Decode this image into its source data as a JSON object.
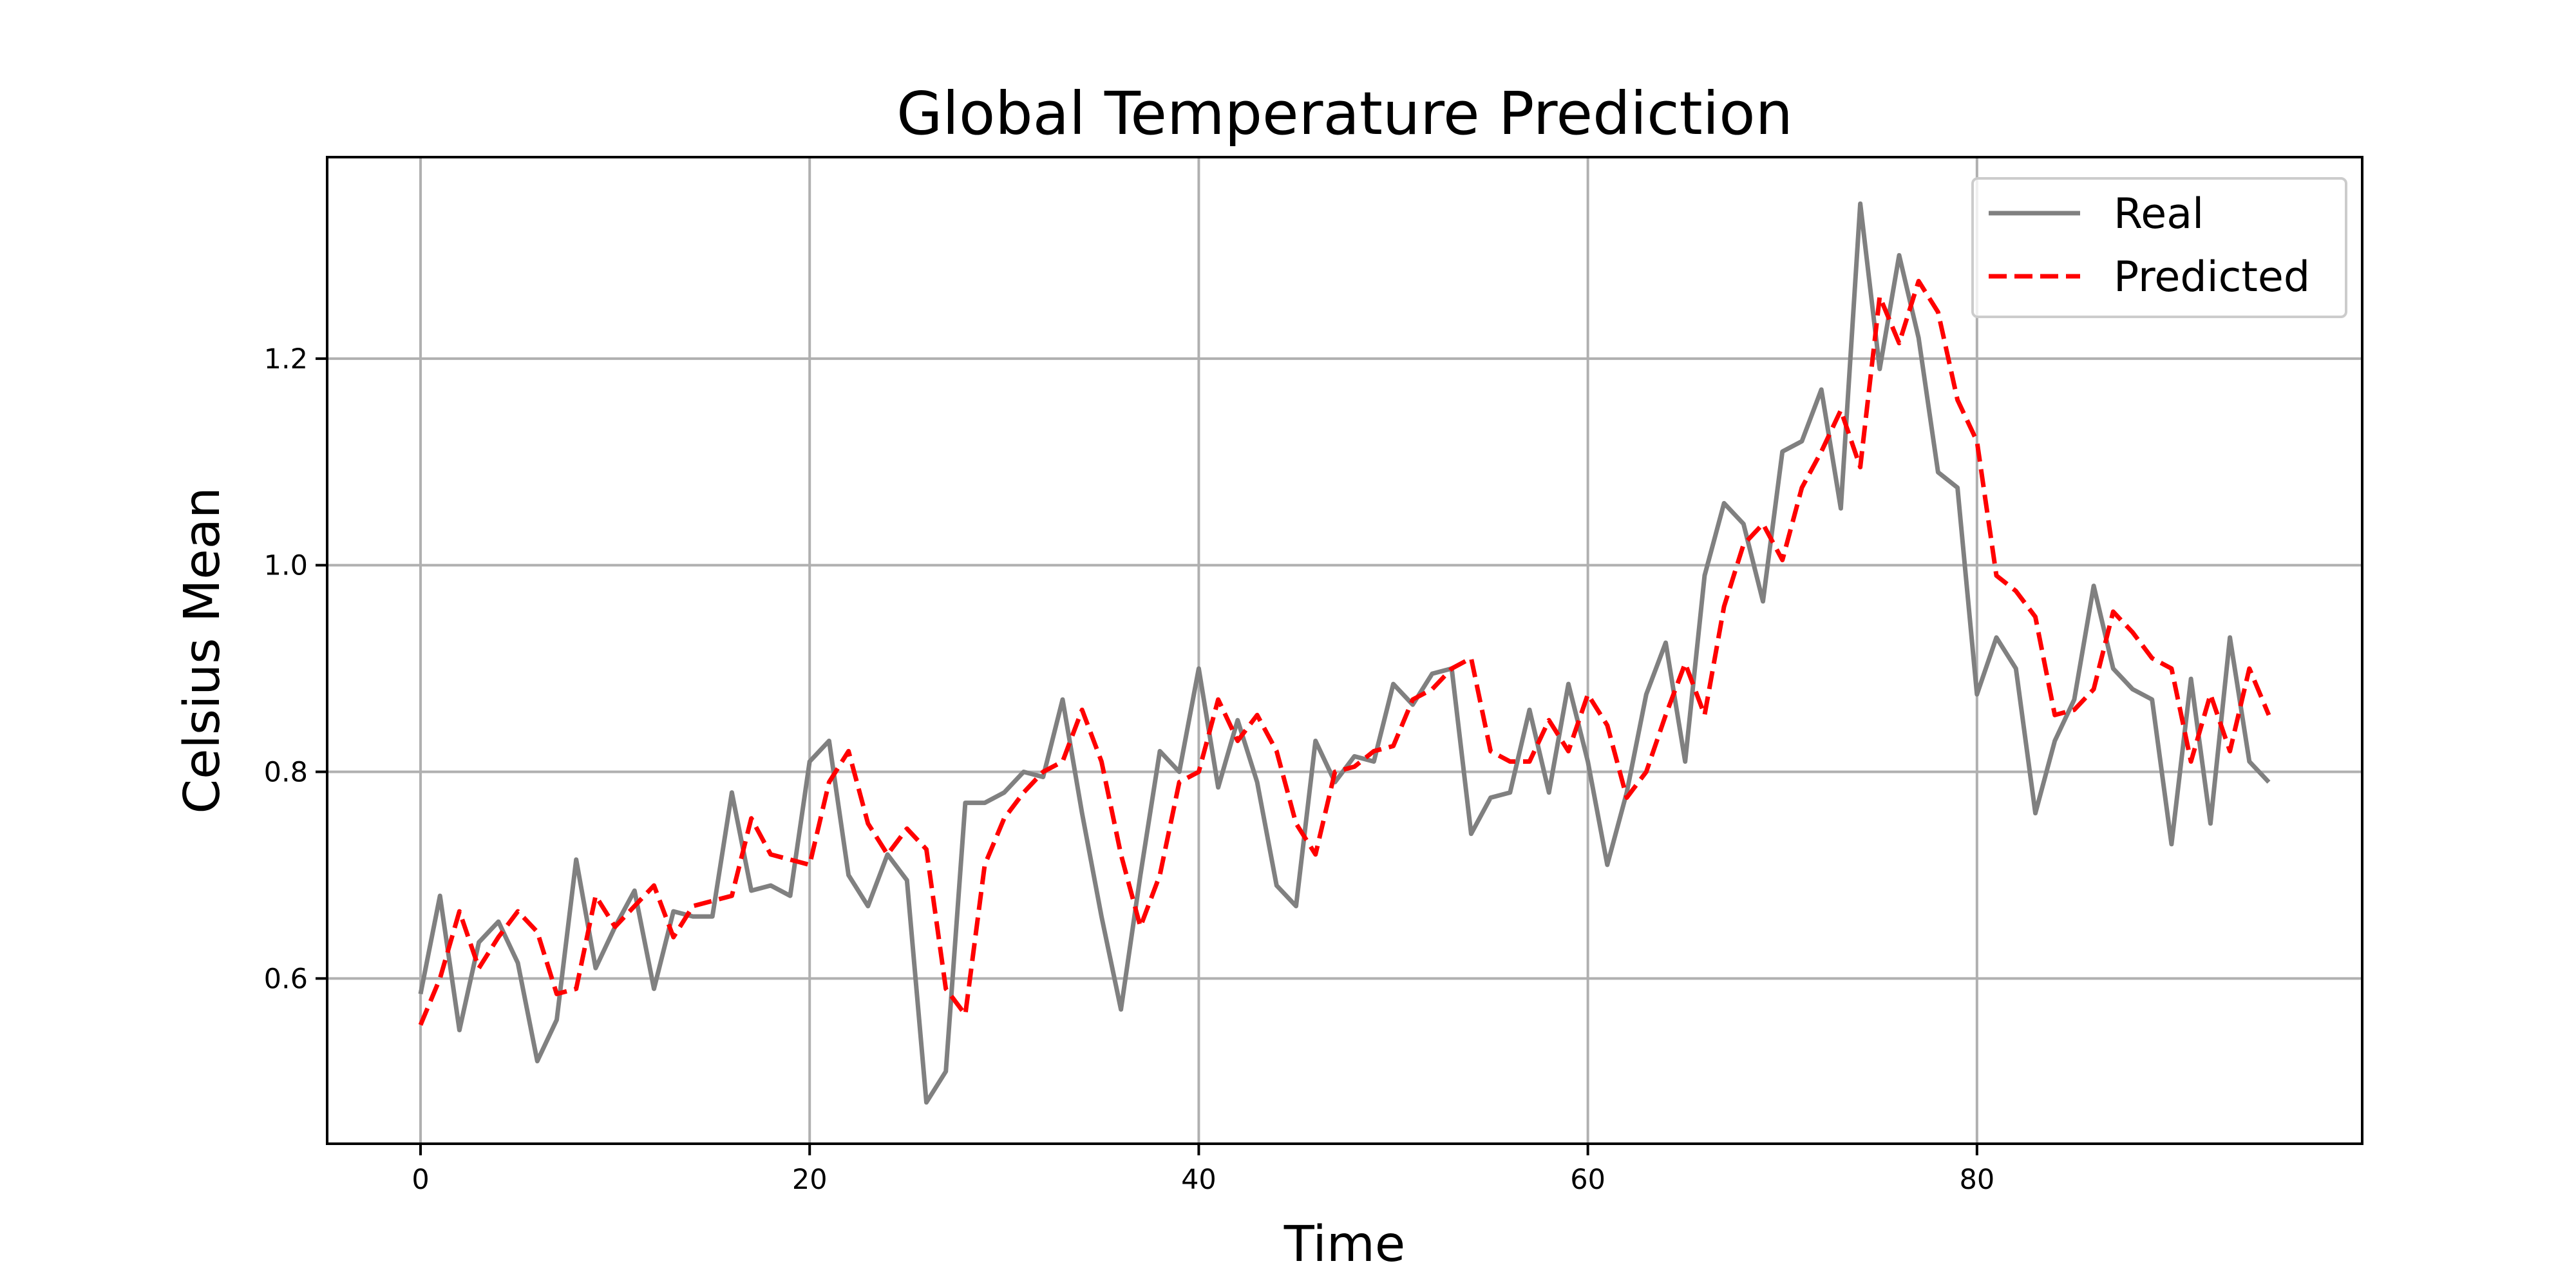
{
  "chart_data": {
    "type": "line",
    "title": "Global Temperature Prediction",
    "xlabel": "Time",
    "ylabel": "Celsius Mean",
    "xlim": [
      -4.8,
      99.8
    ],
    "ylim": [
      0.44,
      1.395
    ],
    "x_ticks": [
      0,
      20,
      40,
      60,
      80
    ],
    "y_ticks": [
      0.6,
      0.8,
      1.0,
      1.2
    ],
    "x_tick_labels": [
      "0",
      "20",
      "40",
      "60",
      "80"
    ],
    "y_tick_labels": [
      "0.6",
      "0.8",
      "1.0",
      "1.2"
    ],
    "grid": true,
    "legend_position": "top-right",
    "colors": {
      "real": "#808080",
      "predicted": "#ff0000",
      "grid": "#b0b0b0"
    },
    "series": [
      {
        "name": "Real",
        "style": "solid",
        "values": [
          0.585,
          0.68,
          0.55,
          0.635,
          0.655,
          0.615,
          0.52,
          0.56,
          0.715,
          0.61,
          0.65,
          0.685,
          0.59,
          0.665,
          0.66,
          0.66,
          0.78,
          0.685,
          0.69,
          0.68,
          0.81,
          0.83,
          0.7,
          0.67,
          0.72,
          0.695,
          0.48,
          0.51,
          0.77,
          0.77,
          0.78,
          0.8,
          0.795,
          0.87,
          0.76,
          0.66,
          0.57,
          0.7,
          0.82,
          0.8,
          0.9,
          0.785,
          0.85,
          0.79,
          0.69,
          0.67,
          0.83,
          0.79,
          0.815,
          0.81,
          0.885,
          0.865,
          0.895,
          0.9,
          0.74,
          0.775,
          0.78,
          0.86,
          0.78,
          0.885,
          0.81,
          0.71,
          0.78,
          0.875,
          0.925,
          0.81,
          0.99,
          1.06,
          1.04,
          0.965,
          1.11,
          1.12,
          1.17,
          1.055,
          1.35,
          1.19,
          1.3,
          1.22,
          1.09,
          1.075,
          0.875,
          0.93,
          0.9,
          0.76,
          0.83,
          0.87,
          0.98,
          0.9,
          0.88,
          0.87,
          0.73,
          0.89,
          0.75,
          0.93,
          0.81,
          0.79
        ]
      },
      {
        "name": "Predicted",
        "style": "dashed",
        "values": [
          0.555,
          0.6,
          0.665,
          0.61,
          0.64,
          0.665,
          0.645,
          0.585,
          0.59,
          0.68,
          0.65,
          0.67,
          0.69,
          0.64,
          0.67,
          0.675,
          0.68,
          0.755,
          0.72,
          0.715,
          0.71,
          0.79,
          0.82,
          0.75,
          0.72,
          0.745,
          0.725,
          0.59,
          0.565,
          0.71,
          0.755,
          0.78,
          0.8,
          0.81,
          0.86,
          0.81,
          0.72,
          0.65,
          0.7,
          0.79,
          0.8,
          0.87,
          0.83,
          0.855,
          0.82,
          0.75,
          0.72,
          0.8,
          0.805,
          0.82,
          0.825,
          0.87,
          0.88,
          0.9,
          0.91,
          0.82,
          0.81,
          0.81,
          0.85,
          0.82,
          0.875,
          0.845,
          0.775,
          0.8,
          0.855,
          0.905,
          0.855,
          0.96,
          1.02,
          1.04,
          1.005,
          1.075,
          1.11,
          1.15,
          1.095,
          1.26,
          1.215,
          1.275,
          1.245,
          1.16,
          1.12,
          0.99,
          0.975,
          0.95,
          0.855,
          0.86,
          0.88,
          0.955,
          0.935,
          0.91,
          0.9,
          0.81,
          0.875,
          0.82,
          0.9,
          0.855
        ]
      }
    ]
  }
}
